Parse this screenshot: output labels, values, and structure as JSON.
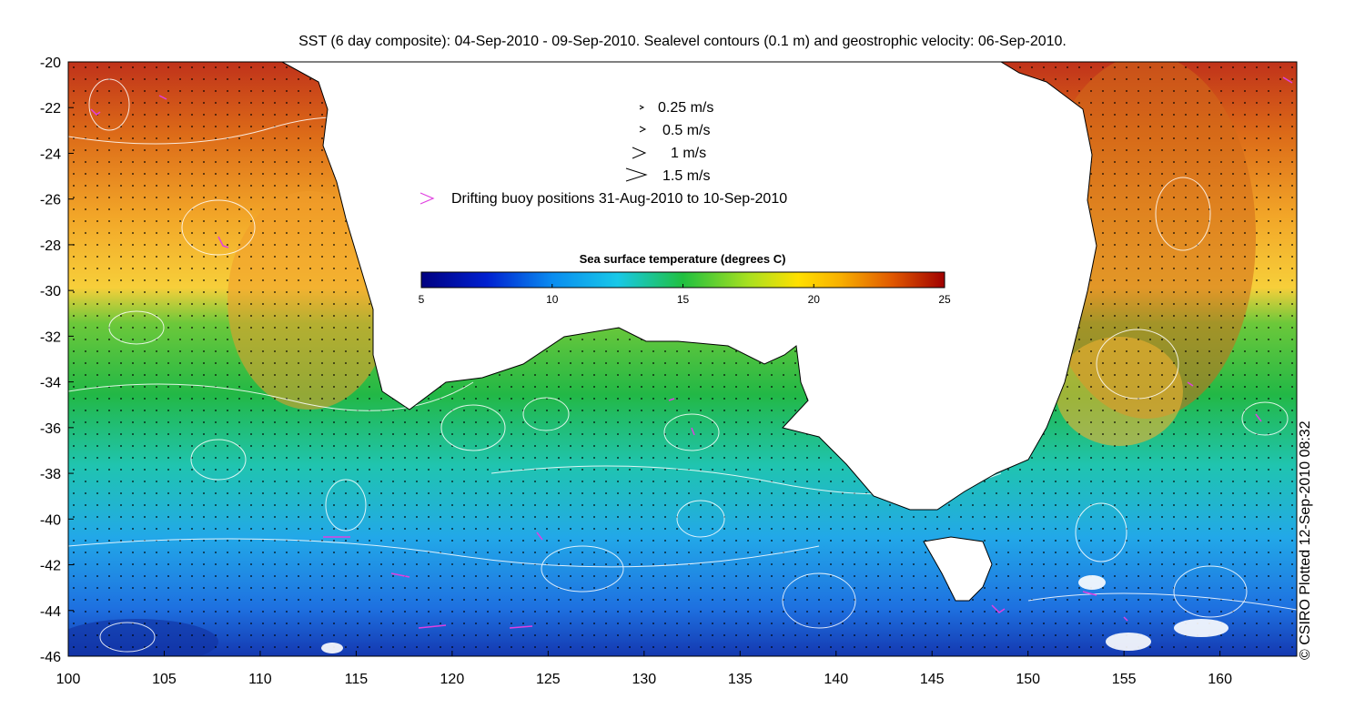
{
  "title": "SST (6 day composite): 04-Sep-2010 - 09-Sep-2010. Sealevel contours (0.1 m) and geostrophic velocity: 06-Sep-2010.",
  "credit": "© CSIRO Plotted 12-Sep-2010 08:32",
  "legend": {
    "velocity_scales": [
      {
        "label": "0.25 m/s",
        "value": 0.25
      },
      {
        "label": "0.5 m/s",
        "value": 0.5
      },
      {
        "label": "1 m/s",
        "value": 1
      },
      {
        "label": "1.5 m/s",
        "value": 1.5
      }
    ],
    "buoy_label": "Drifting buoy positions 31-Aug-2010 to 10-Sep-2010",
    "buoy_color": "#e040e0"
  },
  "colorbar": {
    "title": "Sea surface temperature (degrees C)",
    "min": 5,
    "max": 25,
    "ticks": [
      "5",
      "10",
      "15",
      "20",
      "25"
    ]
  },
  "axes": {
    "x_ticks": [
      "100",
      "105",
      "110",
      "115",
      "120",
      "125",
      "130",
      "135",
      "140",
      "145",
      "150",
      "155",
      "160"
    ],
    "y_ticks": [
      "-20",
      "-22",
      "-24",
      "-26",
      "-28",
      "-30",
      "-32",
      "-34",
      "-36",
      "-38",
      "-40",
      "-42",
      "-44",
      "-46"
    ],
    "lon_range": [
      100,
      164
    ],
    "lat_range": [
      -46,
      -20
    ]
  },
  "colors": {
    "land": "#ffffff",
    "contour": "#ffffff",
    "coast": "#000000",
    "sst_warm": "#c8401a",
    "sst_cool": "#1a6ee0"
  }
}
